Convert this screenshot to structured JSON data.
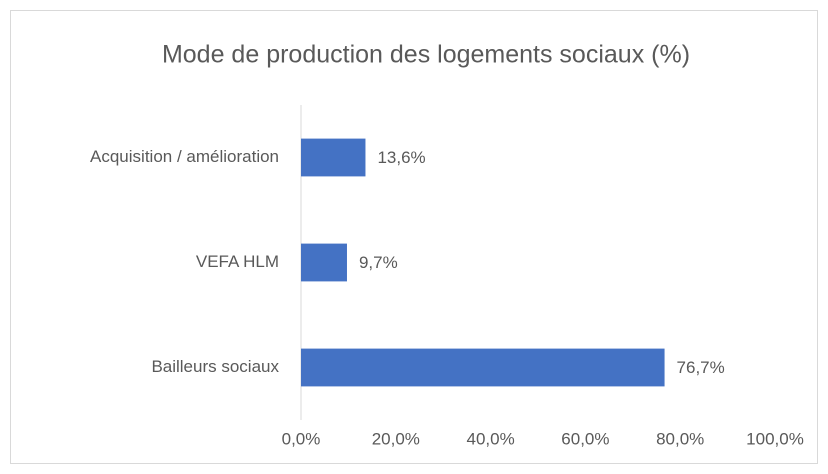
{
  "chart_data": {
    "type": "hbar",
    "title": "Mode de production des logements sociaux (%)",
    "categories": [
      "Acquisition / amélioration",
      "VEFA HLM",
      "Bailleurs sociaux"
    ],
    "values": [
      13.6,
      9.7,
      76.7
    ],
    "value_labels": [
      "13,6%",
      "9,7%",
      "76,7%"
    ],
    "color": "#4472c4",
    "xlim": [
      0,
      100
    ],
    "xticks": [
      {
        "value": 0,
        "label": "0,0%"
      },
      {
        "value": 20,
        "label": "20,0%"
      },
      {
        "value": 40,
        "label": "40,0%"
      },
      {
        "value": 60,
        "label": "60,0%"
      },
      {
        "value": 80,
        "label": "80,0%"
      },
      {
        "value": 100,
        "label": "100,0%"
      }
    ],
    "grid": false
  }
}
